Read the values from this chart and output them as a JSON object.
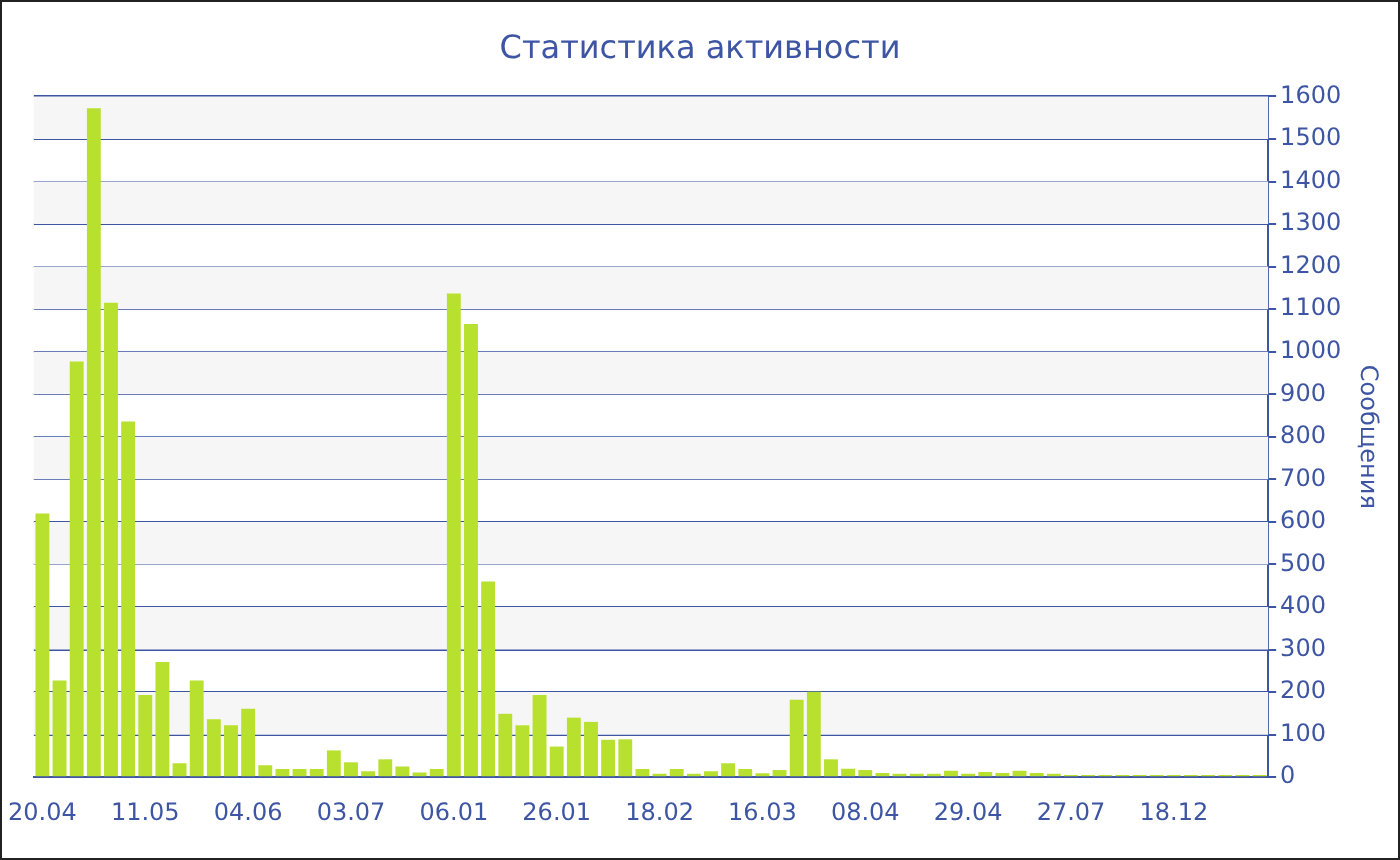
{
  "chart_data": {
    "type": "bar",
    "title": "Статистика активности",
    "ylabel": "Сообщения",
    "categories": [
      "20.04",
      null,
      null,
      null,
      null,
      null,
      "11.05",
      null,
      null,
      null,
      null,
      null,
      "04.06",
      null,
      null,
      null,
      null,
      null,
      "03.07",
      null,
      null,
      null,
      null,
      null,
      "06.01",
      null,
      null,
      null,
      null,
      null,
      "26.01",
      null,
      null,
      null,
      null,
      null,
      "18.02",
      null,
      null,
      null,
      null,
      null,
      "16.03",
      null,
      null,
      null,
      null,
      null,
      "08.04",
      null,
      null,
      null,
      null,
      null,
      "29.04",
      null,
      null,
      null,
      null,
      null,
      "27.07",
      null,
      null,
      null,
      null,
      null,
      "18.12",
      null,
      null,
      null,
      null,
      null
    ],
    "values": [
      620,
      227,
      977,
      1572,
      1115,
      836,
      193,
      271,
      33,
      227,
      136,
      122,
      161,
      28,
      19,
      19,
      19,
      63,
      35,
      14,
      42,
      25,
      11,
      19,
      1137,
      1065,
      460,
      149,
      122,
      193,
      72,
      140,
      130,
      88,
      89,
      19,
      8,
      19,
      8,
      14,
      33,
      19,
      9,
      17,
      182,
      201,
      42,
      20,
      17,
      10,
      8,
      8,
      8,
      15,
      8,
      12,
      10,
      15,
      10,
      8,
      5,
      5,
      5,
      5,
      5,
      5,
      5,
      5,
      5,
      5,
      5,
      5
    ],
    "color": "#b8e02e",
    "ylim": [
      0,
      1600
    ],
    "yticks": [
      0,
      100,
      200,
      300,
      400,
      500,
      600,
      700,
      800,
      900,
      1000,
      1100,
      1200,
      1300,
      1400,
      1500,
      1600
    ],
    "grid": true
  }
}
